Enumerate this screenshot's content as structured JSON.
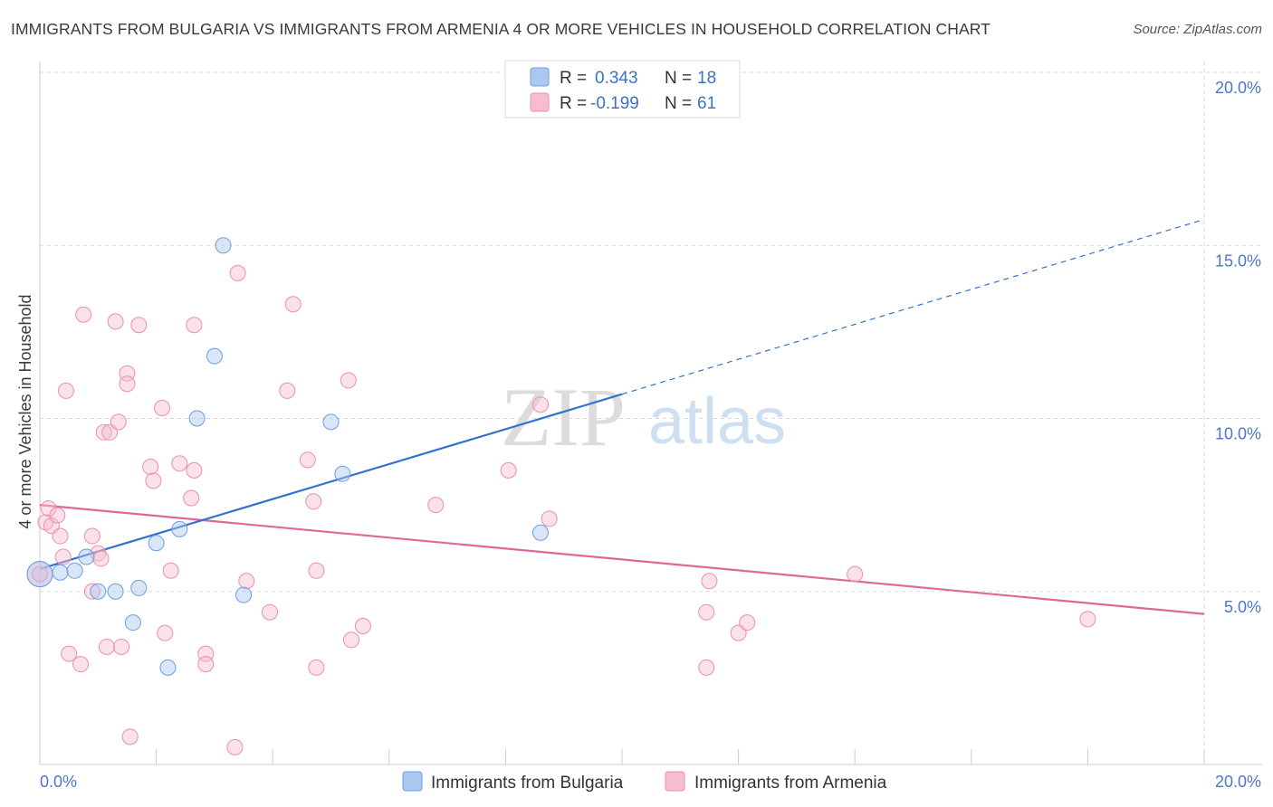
{
  "title": "IMMIGRANTS FROM BULGARIA VS IMMIGRANTS FROM ARMENIA 4 OR MORE VEHICLES IN HOUSEHOLD CORRELATION CHART",
  "source": "Source: ZipAtlas.com",
  "watermark": {
    "zip": "ZIP",
    "atlas": "atlas"
  },
  "colors": {
    "bulgaria_fill": "#aac8f0",
    "bulgaria_stroke": "#6d9ee0",
    "bulgaria_line": "#3272d0",
    "armenia_fill": "#f7bcd0",
    "armenia_stroke": "#ee8eae",
    "armenia_line": "#e0679a",
    "tick_text": "#4a78c8",
    "grid": "#d8d8d8"
  },
  "legend": {
    "rows": [
      {
        "r_label": "R =",
        "r_value": "0.343",
        "n_label": "N =",
        "n_value": "18"
      },
      {
        "r_label": "R =",
        "r_value": "-0.199",
        "n_label": "N =",
        "n_value": "61"
      }
    ]
  },
  "chart_data": {
    "type": "scatter",
    "title": "IMMIGRANTS FROM BULGARIA VS IMMIGRANTS FROM ARMENIA 4 OR MORE VEHICLES IN HOUSEHOLD CORRELATION CHART",
    "xlabel": "",
    "ylabel": "4 or more Vehicles in Household",
    "xlim": [
      0,
      20
    ],
    "ylim": [
      0,
      20
    ],
    "x_tick_labels": [
      "0.0%",
      "20.0%"
    ],
    "y_ticks": [
      5,
      10,
      15,
      20
    ],
    "y_tick_labels": [
      "5.0%",
      "10.0%",
      "15.0%",
      "20.0%"
    ],
    "grid": true,
    "series": [
      {
        "name": "Immigrants from Bulgaria",
        "points": [
          [
            0.0,
            5.5
          ],
          [
            0.35,
            5.55
          ],
          [
            0.6,
            5.6
          ],
          [
            0.8,
            6.0
          ],
          [
            1.0,
            5.0
          ],
          [
            1.3,
            5.0
          ],
          [
            1.7,
            5.1
          ],
          [
            1.6,
            4.1
          ],
          [
            2.0,
            6.4
          ],
          [
            2.2,
            2.8
          ],
          [
            2.4,
            6.8
          ],
          [
            2.7,
            10.0
          ],
          [
            3.0,
            11.8
          ],
          [
            3.15,
            15.0
          ],
          [
            3.5,
            4.9
          ],
          [
            5.0,
            9.9
          ],
          [
            5.2,
            8.4
          ],
          [
            8.6,
            6.7
          ]
        ],
        "trend": {
          "x0": 0.0,
          "y0": 5.65,
          "x1": 10.0,
          "y1": 10.7,
          "dash_to_x": 20.0,
          "dash_to_y": 15.75
        }
      },
      {
        "name": "Immigrants from Armenia",
        "points": [
          [
            0.0,
            5.5
          ],
          [
            0.1,
            7.0
          ],
          [
            0.15,
            7.4
          ],
          [
            0.2,
            6.9
          ],
          [
            0.3,
            7.2
          ],
          [
            0.35,
            6.6
          ],
          [
            0.4,
            6.0
          ],
          [
            0.45,
            10.8
          ],
          [
            0.5,
            3.2
          ],
          [
            0.7,
            2.9
          ],
          [
            0.75,
            13.0
          ],
          [
            0.9,
            6.6
          ],
          [
            0.9,
            5.0
          ],
          [
            1.0,
            6.1
          ],
          [
            1.05,
            5.95
          ],
          [
            1.1,
            9.6
          ],
          [
            1.15,
            3.4
          ],
          [
            1.2,
            9.6
          ],
          [
            1.3,
            12.8
          ],
          [
            1.35,
            9.9
          ],
          [
            1.4,
            3.4
          ],
          [
            1.5,
            11.3
          ],
          [
            1.5,
            11.0
          ],
          [
            1.55,
            0.8
          ],
          [
            1.7,
            12.7
          ],
          [
            1.9,
            8.6
          ],
          [
            1.95,
            8.2
          ],
          [
            2.1,
            10.3
          ],
          [
            2.15,
            3.8
          ],
          [
            2.25,
            5.6
          ],
          [
            2.4,
            8.7
          ],
          [
            2.6,
            7.7
          ],
          [
            2.65,
            8.5
          ],
          [
            2.65,
            12.7
          ],
          [
            2.85,
            3.2
          ],
          [
            2.85,
            2.9
          ],
          [
            3.4,
            14.2
          ],
          [
            3.35,
            0.5
          ],
          [
            3.55,
            5.3
          ],
          [
            3.95,
            4.4
          ],
          [
            4.25,
            10.8
          ],
          [
            4.35,
            13.3
          ],
          [
            4.6,
            8.8
          ],
          [
            4.7,
            7.6
          ],
          [
            4.75,
            5.6
          ],
          [
            4.75,
            2.8
          ],
          [
            5.3,
            11.1
          ],
          [
            5.35,
            3.6
          ],
          [
            5.55,
            4.0
          ],
          [
            6.8,
            7.5
          ],
          [
            8.05,
            8.5
          ],
          [
            8.6,
            10.4
          ],
          [
            8.75,
            7.1
          ],
          [
            11.45,
            4.4
          ],
          [
            11.45,
            2.8
          ],
          [
            11.5,
            5.3
          ],
          [
            12.0,
            3.8
          ],
          [
            12.15,
            4.1
          ],
          [
            14.0,
            5.5
          ],
          [
            18.0,
            4.2
          ],
          [
            0.0,
            5.5
          ]
        ],
        "trend": {
          "x0": 0.0,
          "y0": 7.5,
          "x1": 20.0,
          "y1": 4.35
        }
      }
    ],
    "legend_position": "top-center",
    "bottom_legend": [
      "Immigrants from Bulgaria",
      "Immigrants from Armenia"
    ]
  }
}
